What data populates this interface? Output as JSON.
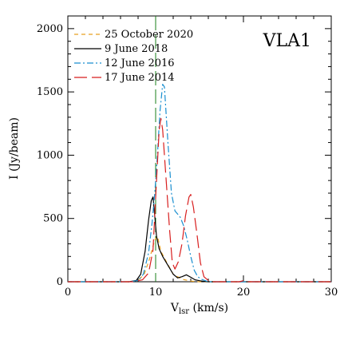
{
  "chart_data": {
    "type": "line",
    "title": "",
    "panel_label": "VLA1",
    "xlabel_main": "V",
    "xlabel_sub": "lsr",
    "xlabel_unit": " (km/s)",
    "ylabel": "I (Jy/beam)",
    "xlim": [
      0,
      30
    ],
    "ylim": [
      0,
      2100
    ],
    "x_ticks": [
      0,
      10,
      20,
      30
    ],
    "y_ticks": [
      0,
      500,
      1000,
      1500,
      2000
    ],
    "grid": false,
    "legend_position": "top-left",
    "reference_line": {
      "x": 10.0,
      "color": "#1a7f1a",
      "style": "long-dash"
    },
    "series": [
      {
        "name": "25 October 2020",
        "color": "#e8a020",
        "dash": "5,4",
        "points": [
          [
            0,
            0
          ],
          [
            7,
            0
          ],
          [
            8,
            10
          ],
          [
            8.7,
            60
          ],
          [
            9.3,
            180
          ],
          [
            9.9,
            330
          ],
          [
            10.2,
            360
          ],
          [
            10.6,
            240
          ],
          [
            11.2,
            160
          ],
          [
            12,
            60
          ],
          [
            13,
            20
          ],
          [
            14,
            5
          ],
          [
            15,
            0
          ],
          [
            19.7,
            0
          ],
          [
            20,
            3
          ],
          [
            20.3,
            0
          ],
          [
            30,
            0
          ]
        ]
      },
      {
        "name": "9 June 2018",
        "color": "#000000",
        "dash": "",
        "points": [
          [
            0,
            0
          ],
          [
            7,
            0
          ],
          [
            7.8,
            10
          ],
          [
            8.3,
            60
          ],
          [
            8.8,
            240
          ],
          [
            9.2,
            490
          ],
          [
            9.5,
            640
          ],
          [
            9.7,
            670
          ],
          [
            9.9,
            520
          ],
          [
            10.1,
            360
          ],
          [
            10.4,
            260
          ],
          [
            10.8,
            200
          ],
          [
            11.4,
            130
          ],
          [
            12,
            60
          ],
          [
            12.5,
            30
          ],
          [
            13,
            40
          ],
          [
            13.5,
            55
          ],
          [
            14,
            35
          ],
          [
            14.5,
            15
          ],
          [
            15,
            8
          ],
          [
            15.5,
            3
          ],
          [
            16,
            0
          ],
          [
            30,
            0
          ]
        ]
      },
      {
        "name": "12 June 2016",
        "color": "#1a8fd0",
        "dash": "8,3,2,3",
        "points": [
          [
            0,
            0
          ],
          [
            7,
            0
          ],
          [
            8,
            10
          ],
          [
            8.6,
            60
          ],
          [
            9.2,
            230
          ],
          [
            9.6,
            470
          ],
          [
            9.9,
            700
          ],
          [
            10.2,
            1000
          ],
          [
            10.5,
            1350
          ],
          [
            10.8,
            1560
          ],
          [
            11,
            1540
          ],
          [
            11.4,
            1100
          ],
          [
            11.8,
            700
          ],
          [
            12.2,
            560
          ],
          [
            12.8,
            510
          ],
          [
            13.2,
            440
          ],
          [
            13.6,
            330
          ],
          [
            14,
            200
          ],
          [
            14.4,
            90
          ],
          [
            14.8,
            40
          ],
          [
            15.2,
            20
          ],
          [
            15.6,
            10
          ],
          [
            16,
            0
          ],
          [
            30,
            0
          ]
        ]
      },
      {
        "name": "17 June 2014",
        "color": "#d81f1f",
        "dash": "16,6",
        "points": [
          [
            0,
            0
          ],
          [
            7.5,
            0
          ],
          [
            8.5,
            15
          ],
          [
            9.2,
            70
          ],
          [
            9.7,
            250
          ],
          [
            10.1,
            800
          ],
          [
            10.4,
            1200
          ],
          [
            10.6,
            1290
          ],
          [
            10.8,
            1200
          ],
          [
            11.2,
            800
          ],
          [
            11.6,
            400
          ],
          [
            11.9,
            150
          ],
          [
            12.2,
            100
          ],
          [
            12.6,
            160
          ],
          [
            13,
            300
          ],
          [
            13.4,
            520
          ],
          [
            13.8,
            670
          ],
          [
            14,
            690
          ],
          [
            14.3,
            590
          ],
          [
            14.7,
            380
          ],
          [
            15.1,
            150
          ],
          [
            15.5,
            40
          ],
          [
            16,
            10
          ],
          [
            16.5,
            0
          ],
          [
            19.5,
            0
          ],
          [
            20,
            8
          ],
          [
            20.5,
            0
          ],
          [
            30,
            0
          ]
        ]
      }
    ]
  }
}
